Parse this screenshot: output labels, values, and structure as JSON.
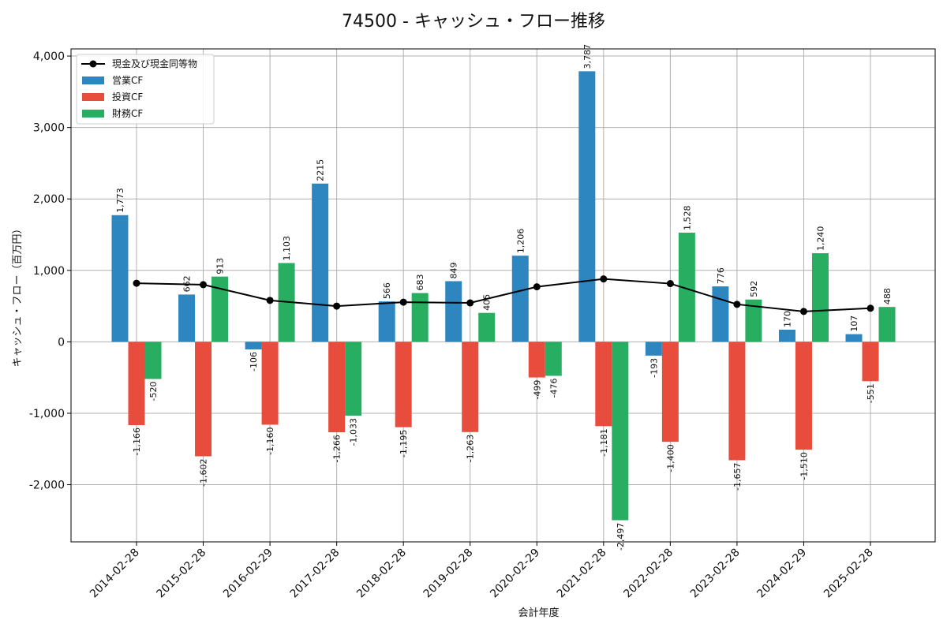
{
  "chart_data": {
    "type": "bar",
    "title": "74500 - キャッシュ・フロー推移",
    "xlabel": "会計年度",
    "ylabel": "キャッシュ・フロー（百万円）",
    "ylim": [
      -2800,
      4100
    ],
    "yticks": [
      -2000,
      -1000,
      0,
      1000,
      2000,
      3000,
      4000
    ],
    "ytick_labels": [
      "-2,000",
      "-1,000",
      "0",
      "1,000",
      "2,000",
      "3,000",
      "4,000"
    ],
    "grid": true,
    "legend_position": "top-left",
    "categories": [
      "2014-02-28",
      "2015-02-28",
      "2016-02-29",
      "2017-02-28",
      "2018-02-28",
      "2019-02-28",
      "2020-02-29",
      "2021-02-28",
      "2022-02-28",
      "2023-02-28",
      "2024-02-29",
      "2025-02-28"
    ],
    "series": [
      {
        "name": "営業CF",
        "kind": "bar",
        "color": "#2e86c1",
        "values": [
          1773,
          662,
          -106,
          2215,
          566,
          849,
          1206,
          3787,
          -193,
          776,
          170,
          107
        ],
        "labels": [
          "1,773",
          "662",
          "-106",
          "2215",
          "566",
          "849",
          "1,206",
          "3,787",
          "-193",
          "776",
          "170",
          "107"
        ]
      },
      {
        "name": "投資CF",
        "kind": "bar",
        "color": "#e74c3c",
        "values": [
          -1166,
          -1602,
          -1160,
          -1266,
          -1195,
          -1263,
          -499,
          -1181,
          -1400,
          -1657,
          -1510,
          -551
        ],
        "labels": [
          "-1,166",
          "-1,602",
          "-1,160",
          "-1,266",
          "-1,195",
          "-1,263",
          "-499",
          "-1,181",
          "-1,400",
          "-1,657",
          "-1,510",
          "-551"
        ]
      },
      {
        "name": "財務CF",
        "kind": "bar",
        "color": "#27ae60",
        "values": [
          -520,
          913,
          1103,
          -1033,
          683,
          405,
          -476,
          -2497,
          1528,
          592,
          1240,
          488
        ],
        "labels": [
          "-520",
          "913",
          "1,103",
          "-1,033",
          "683",
          "405",
          "-476",
          "-2,497",
          "1,528",
          "592",
          "1,240",
          "488"
        ]
      },
      {
        "name": "現金及び現金同等物",
        "kind": "line",
        "color": "#000000",
        "values": [
          820,
          800,
          580,
          500,
          555,
          545,
          770,
          880,
          815,
          525,
          425,
          470
        ]
      }
    ]
  }
}
